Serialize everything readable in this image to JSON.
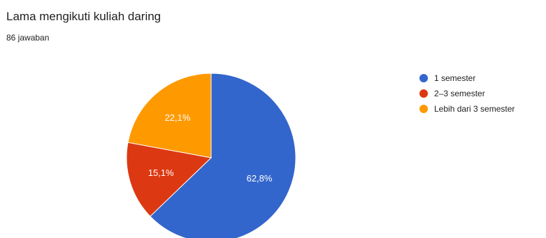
{
  "chart_data": {
    "type": "pie",
    "title": "Lama mengikuti kuliah daring",
    "subtitle": "86 jawaban",
    "categories": [
      "1 semester",
      "2–3 semester",
      "Lebih dari 3 semester"
    ],
    "values": [
      62.8,
      15.1,
      22.1
    ],
    "data_labels": [
      "62,8%",
      "15,1%",
      "22,1%"
    ],
    "colors": [
      "#3366cc",
      "#dc3912",
      "#ff9900"
    ],
    "start_angle_deg": 90,
    "direction": "clockwise",
    "legend_position": "right"
  }
}
